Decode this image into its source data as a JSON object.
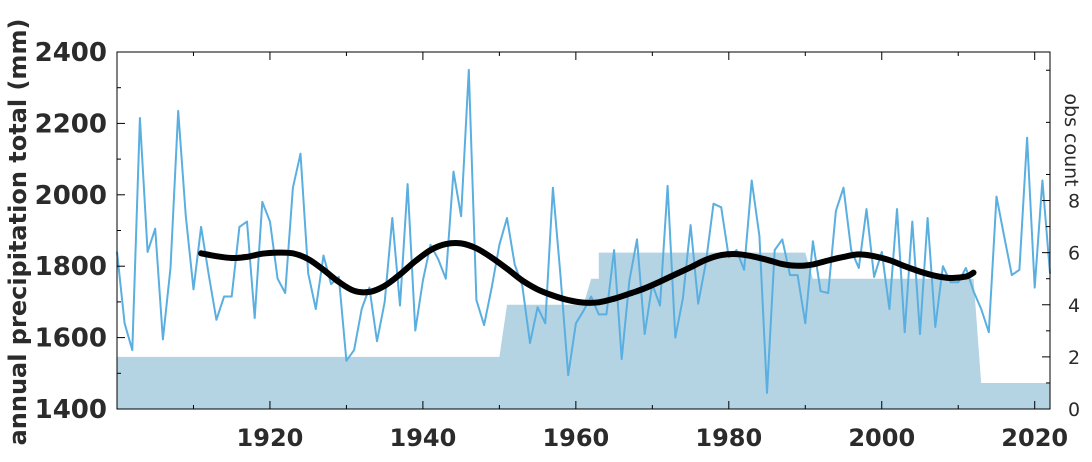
{
  "chart_data": {
    "type": "line",
    "title": "",
    "xlabel": "",
    "ylabel": "annual precipitation total (mm)",
    "y2label": "obs count",
    "xlim": [
      1900,
      2022
    ],
    "ylim": [
      1400,
      2400
    ],
    "y2lim": [
      0,
      13.7
    ],
    "x_ticks": [
      1920,
      1940,
      1960,
      1980,
      2000,
      2020
    ],
    "y_ticks": [
      1400,
      1600,
      1800,
      2000,
      2200,
      2400
    ],
    "y2_ticks": [
      0,
      2,
      4,
      6,
      8
    ],
    "grid": false,
    "legend": "none",
    "series": [
      {
        "name": "",
        "role": "annual",
        "color": "#5aafe0",
        "x": [
          1900,
          1901,
          1902,
          1903,
          1904,
          1905,
          1906,
          1907,
          1908,
          1909,
          1910,
          1911,
          1912,
          1913,
          1914,
          1915,
          1916,
          1917,
          1918,
          1919,
          1920,
          1921,
          1922,
          1923,
          1924,
          1925,
          1926,
          1927,
          1928,
          1929,
          1930,
          1931,
          1932,
          1933,
          1934,
          1935,
          1936,
          1937,
          1938,
          1939,
          1940,
          1941,
          1942,
          1943,
          1944,
          1945,
          1946,
          1947,
          1948,
          1949,
          1950,
          1951,
          1952,
          1953,
          1954,
          1955,
          1956,
          1957,
          1958,
          1959,
          1960,
          1961,
          1962,
          1963,
          1964,
          1965,
          1966,
          1967,
          1968,
          1969,
          1970,
          1971,
          1972,
          1973,
          1974,
          1975,
          1976,
          1977,
          1978,
          1979,
          1980,
          1981,
          1982,
          1983,
          1984,
          1985,
          1986,
          1987,
          1988,
          1989,
          1990,
          1991,
          1992,
          1993,
          1994,
          1995,
          1996,
          1997,
          1998,
          1999,
          2000,
          2001,
          2002,
          2003,
          2004,
          2005,
          2006,
          2007,
          2008,
          2009,
          2010,
          2011,
          2012,
          2013,
          2014,
          2015,
          2016,
          2017,
          2018,
          2019,
          2020,
          2021,
          2022
        ],
        "values": [
          1840,
          1640,
          1565,
          2215,
          1840,
          1905,
          1595,
          1795,
          2235,
          1940,
          1735,
          1910,
          1775,
          1650,
          1715,
          1715,
          1910,
          1925,
          1655,
          1980,
          1925,
          1765,
          1725,
          2020,
          2115,
          1780,
          1680,
          1830,
          1750,
          1770,
          1535,
          1565,
          1680,
          1740,
          1590,
          1700,
          1935,
          1690,
          2030,
          1620,
          1760,
          1860,
          1820,
          1765,
          2065,
          1940,
          2350,
          1705,
          1635,
          1740,
          1860,
          1935,
          1805,
          1745,
          1585,
          1685,
          1640,
          2020,
          1770,
          1495,
          1640,
          1675,
          1715,
          1665,
          1665,
          1845,
          1540,
          1760,
          1875,
          1610,
          1750,
          1690,
          2025,
          1600,
          1710,
          1915,
          1695,
          1810,
          1975,
          1965,
          1825,
          1845,
          1790,
          2040,
          1885,
          1445,
          1845,
          1875,
          1775,
          1775,
          1640,
          1870,
          1730,
          1725,
          1955,
          2020,
          1845,
          1795,
          1960,
          1770,
          1840,
          1680,
          1960,
          1615,
          1925,
          1610,
          1935,
          1630,
          1800,
          1755,
          1755,
          1795,
          1730,
          1680,
          1615,
          1995,
          1885,
          1775,
          1790,
          2160,
          1740,
          2040,
          1780
        ]
      },
      {
        "name": "",
        "role": "smoothed",
        "color": "#000000",
        "x": [
          1911,
          1913,
          1915,
          1917,
          1919,
          1921,
          1923,
          1925,
          1927,
          1929,
          1931,
          1933,
          1935,
          1937,
          1939,
          1941,
          1943,
          1945,
          1947,
          1949,
          1951,
          1953,
          1955,
          1957,
          1959,
          1961,
          1963,
          1965,
          1967,
          1969,
          1971,
          1973,
          1975,
          1977,
          1979,
          1981,
          1983,
          1985,
          1987,
          1989,
          1991,
          1993,
          1995,
          1997,
          1999,
          2001,
          2003,
          2005,
          2007,
          2009,
          2011,
          2012
        ],
        "values": [
          1836,
          1828,
          1823,
          1826,
          1835,
          1838,
          1836,
          1820,
          1790,
          1756,
          1731,
          1728,
          1745,
          1777,
          1814,
          1845,
          1862,
          1864,
          1850,
          1824,
          1793,
          1760,
          1735,
          1718,
          1705,
          1698,
          1699,
          1709,
          1723,
          1738,
          1757,
          1777,
          1797,
          1818,
          1831,
          1834,
          1828,
          1818,
          1806,
          1801,
          1805,
          1816,
          1826,
          1833,
          1828,
          1817,
          1800,
          1785,
          1773,
          1767,
          1771,
          1782
        ]
      },
      {
        "name": "",
        "role": "obs_count",
        "color": "#b4d4e4",
        "axis": "right",
        "steps": [
          {
            "x0": 1900,
            "x1": 1950,
            "value": 2
          },
          {
            "x0": 1951,
            "x1": 1961,
            "value": 4
          },
          {
            "x0": 1962,
            "x1": 1963,
            "value": 5
          },
          {
            "x0": 1963,
            "x1": 1990,
            "value": 6
          },
          {
            "x0": 1991,
            "x1": 2012,
            "value": 5
          },
          {
            "x0": 2013,
            "x1": 2022,
            "value": 1
          }
        ]
      }
    ]
  }
}
